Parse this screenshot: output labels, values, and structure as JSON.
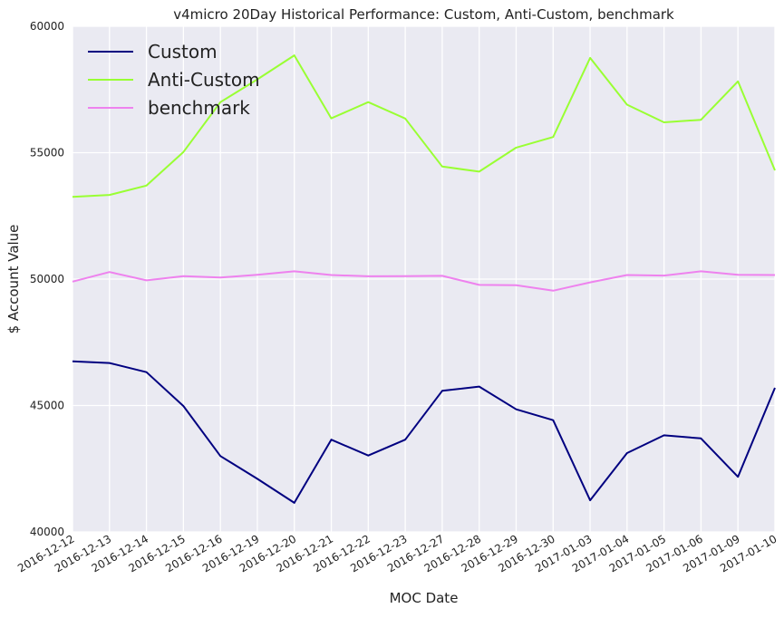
{
  "chart_data": {
    "type": "line",
    "title": "v4micro 20Day Historical Performance: Custom, Anti-Custom, benchmark",
    "xlabel": "MOC Date",
    "ylabel": "$ Account Value",
    "categories": [
      "2016-12-12",
      "2016-12-13",
      "2016-12-14",
      "2016-12-15",
      "2016-12-16",
      "2016-12-19",
      "2016-12-20",
      "2016-12-21",
      "2016-12-22",
      "2016-12-23",
      "2016-12-27",
      "2016-12-28",
      "2016-12-29",
      "2016-12-30",
      "2017-01-03",
      "2017-01-04",
      "2017-01-05",
      "2017-01-06",
      "2017-01-09",
      "2017-01-10"
    ],
    "ylim": [
      40000,
      60000
    ],
    "yticks": [
      "40000",
      "45000",
      "50000",
      "55000",
      "60000"
    ],
    "grid": true,
    "legend_position": "top-left",
    "background": "#eaeaf2",
    "series": [
      {
        "name": "Custom",
        "color": "#000080",
        "values": [
          46750,
          46680,
          46320,
          44980,
          43000,
          42100,
          41150,
          43650,
          43020,
          43650,
          45580,
          45750,
          44850,
          44420,
          41250,
          43120,
          43820,
          43700,
          42180,
          45700
        ]
      },
      {
        "name": "Anti-Custom",
        "color": "#99ff33",
        "values": [
          53250,
          53330,
          53700,
          55030,
          57000,
          57900,
          58850,
          56360,
          57000,
          56350,
          54450,
          54250,
          55200,
          55620,
          58750,
          56900,
          56200,
          56300,
          57820,
          54300
        ]
      },
      {
        "name": "benchmark",
        "color": "#ee82ee",
        "values": [
          49900,
          50280,
          49950,
          50120,
          50060,
          50170,
          50310,
          50160,
          50110,
          50120,
          50130,
          49770,
          49760,
          49540,
          49870,
          50160,
          50140,
          50310,
          50170,
          50160
        ]
      }
    ]
  }
}
